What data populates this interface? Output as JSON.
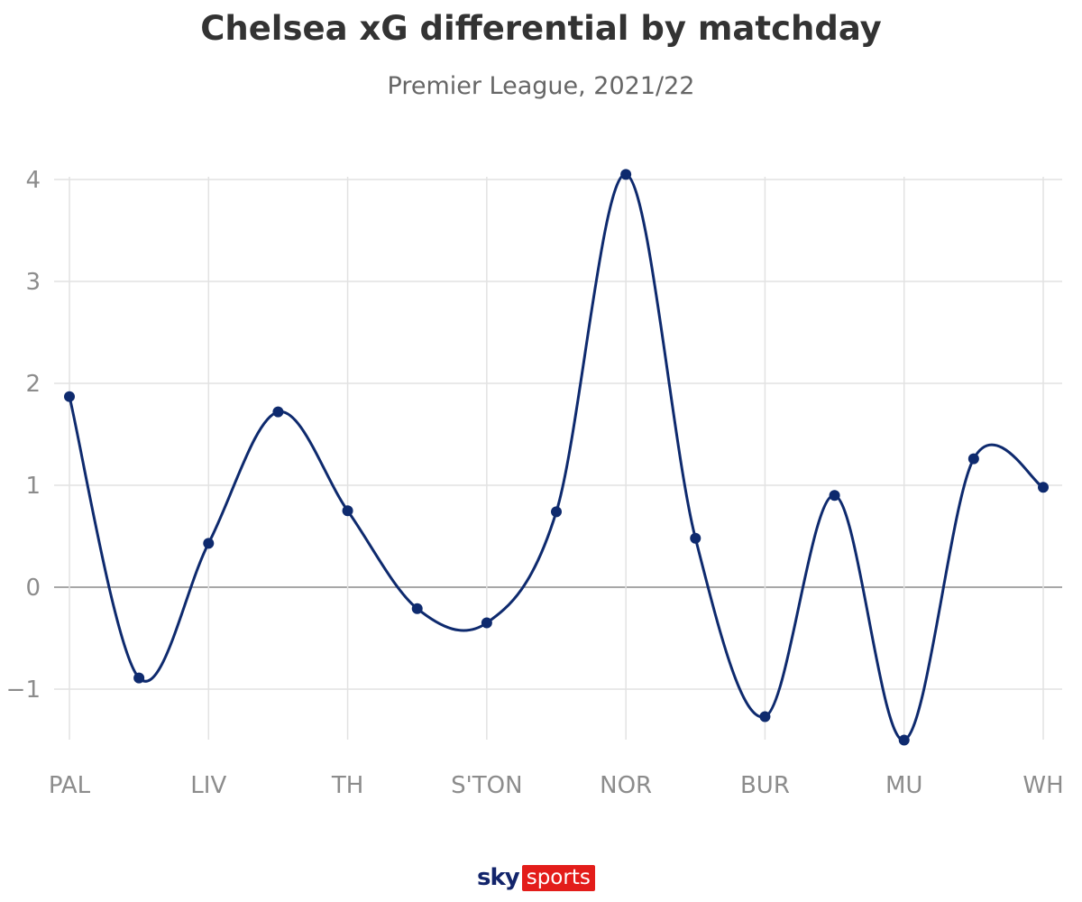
{
  "chart_data": {
    "type": "line",
    "title": "Chelsea xG differential by matchday",
    "subtitle": "Premier League, 2021/22",
    "categories": [
      "PAL",
      "",
      "LIV",
      "",
      "TH",
      "",
      "S'TON",
      "",
      "NOR",
      "",
      "BUR",
      "",
      "MU",
      "",
      "WH"
    ],
    "series": [
      {
        "values": [
          1.87,
          -0.89,
          0.43,
          1.72,
          0.75,
          -0.21,
          -0.35,
          0.74,
          4.05,
          0.48,
          -1.27,
          0.9,
          -1.5,
          1.26,
          0.98
        ]
      }
    ],
    "y_ticks": [
      "4",
      "3",
      "2",
      "1",
      "0",
      "−1"
    ],
    "ylim": [
      -1.5,
      4
    ],
    "grid": true,
    "line_color": "#0e2a6e",
    "zero_line_color": "#8a8a8a",
    "grid_color": "#e2e2e2"
  },
  "branding": {
    "sky": "sky",
    "sports": "sports"
  }
}
